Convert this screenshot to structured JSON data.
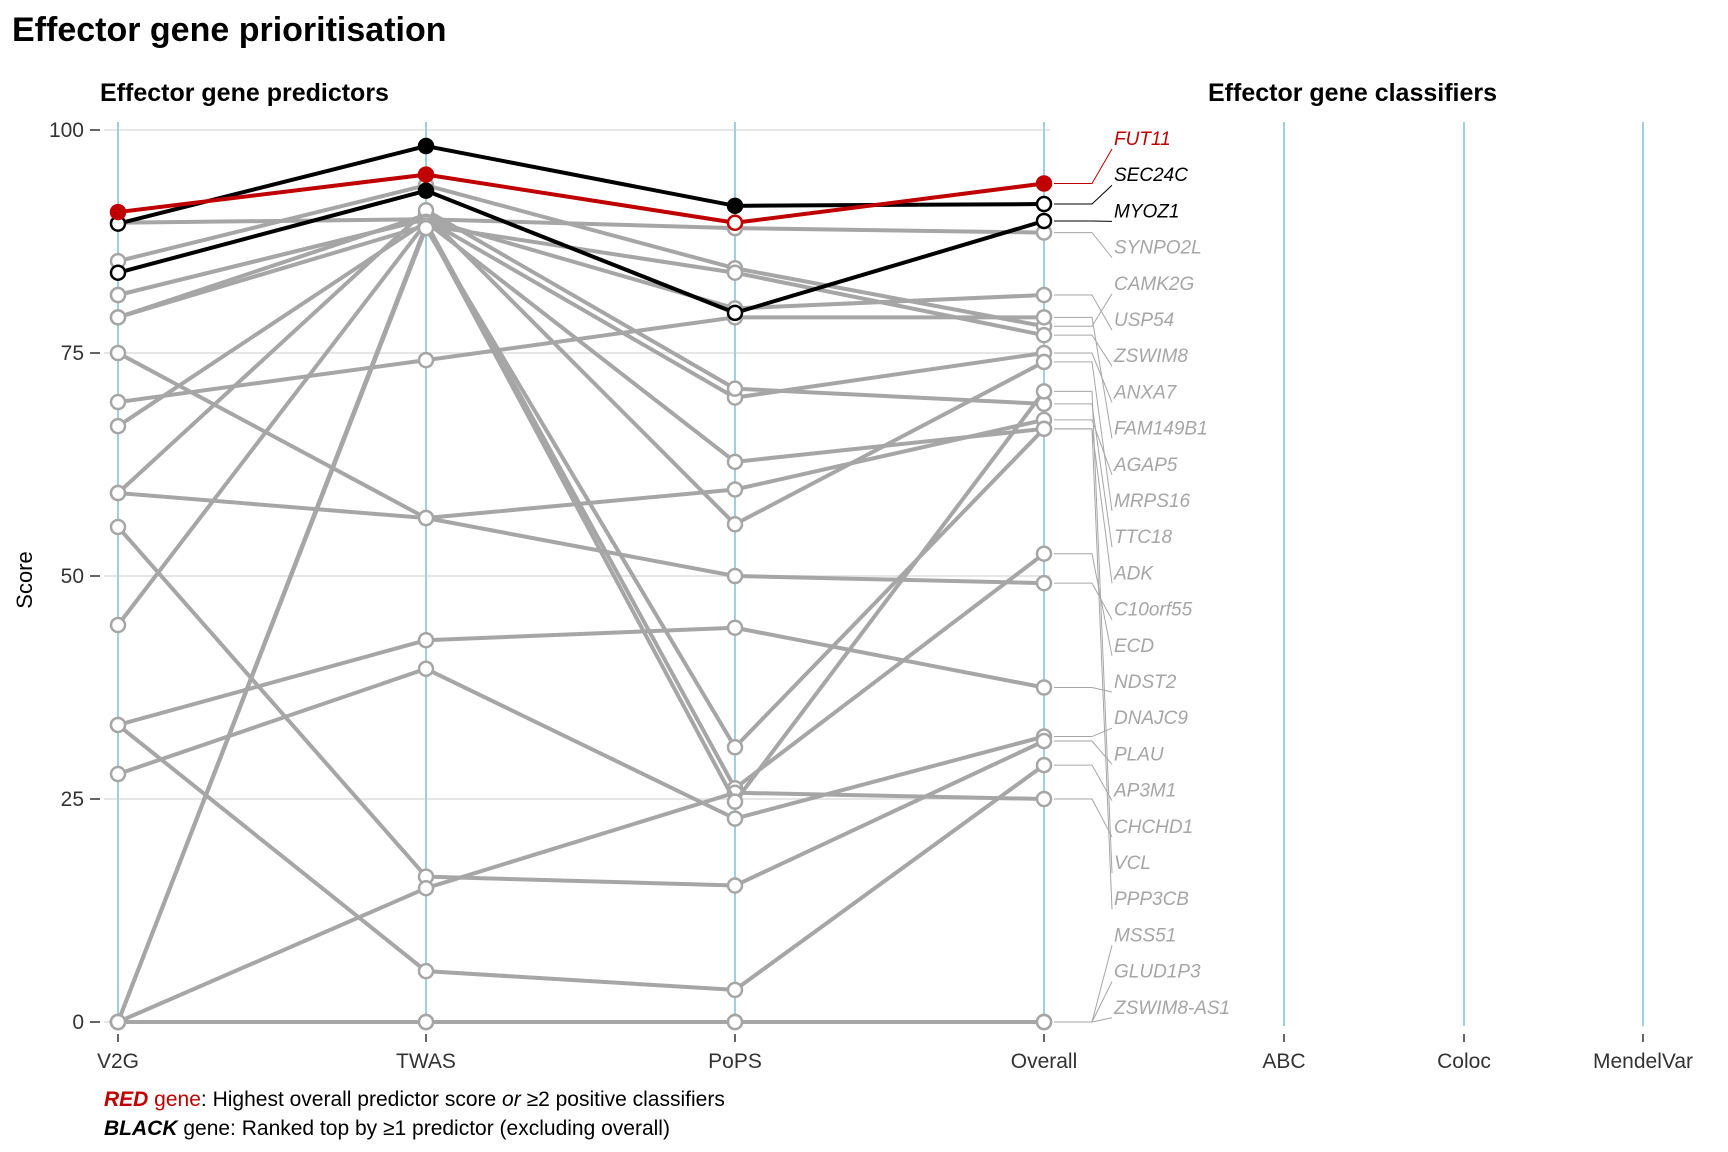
{
  "title": "Effector gene prioritisation",
  "panel_left_title": "Effector gene predictors",
  "panel_right_title": "Effector gene classifiers",
  "footnote": {
    "line1": {
      "bold": "RED",
      "colored": " gene",
      "rest1": ": Highest overall predictor score ",
      "italic": "or",
      "rest2": " ≥2 positive classifiers"
    },
    "line2": {
      "bold": "BLACK",
      "rest": " gene: Ranked top by ≥1 predictor (excluding overall)"
    }
  },
  "colors": {
    "red": "#c00000",
    "black": "#000000",
    "grey": "#a6a6a6",
    "axis_line": "#9fd0de",
    "grid": "#e6e6e6"
  },
  "chart_data": {
    "type": "line",
    "title": "Effector gene prioritisation",
    "ylabel": "Score",
    "ylim": [
      0,
      100
    ],
    "yticks": [
      0,
      25,
      50,
      75,
      100
    ],
    "grid": true,
    "categories": [
      "V2G",
      "TWAS",
      "PoPS",
      "Overall"
    ],
    "classifier_categories": [
      "ABC",
      "Coloc",
      "MendelVar"
    ],
    "series": [
      {
        "name": "FUT11",
        "group": "red",
        "values": [
          90.8,
          95.0,
          89.6,
          94.0
        ]
      },
      {
        "name": "SEC24C",
        "group": "black",
        "values": [
          89.5,
          98.2,
          91.5,
          91.7
        ]
      },
      {
        "name": "MYOZ1",
        "group": "black",
        "values": [
          84.0,
          93.2,
          79.5,
          89.8
        ]
      },
      {
        "name": "SYNPO2L",
        "group": "grey",
        "values": [
          89.6,
          90.0,
          89.0,
          88.5
        ]
      },
      {
        "name": "CAMK2G",
        "group": "grey",
        "values": [
          85.3,
          93.8,
          84.5,
          78.0
        ]
      },
      {
        "name": "USP54",
        "group": "grey",
        "values": [
          81.5,
          90.0,
          80.0,
          81.5
        ]
      },
      {
        "name": "ZSWIM8",
        "group": "grey",
        "values": [
          79.0,
          89.3,
          84.0,
          77.0
        ]
      },
      {
        "name": "ANXA7",
        "group": "grey",
        "values": [
          81.5,
          90.0,
          70.0,
          75.0
        ]
      },
      {
        "name": "FAM149B1",
        "group": "grey",
        "values": [
          69.5,
          74.2,
          79.0,
          79.0
        ]
      },
      {
        "name": "AGAP5",
        "group": "grey",
        "values": [
          75.0,
          56.5,
          59.7,
          67.5
        ]
      },
      {
        "name": "MRPS16",
        "group": "grey",
        "values": [
          79.0,
          90.5,
          55.8,
          74.0
        ]
      },
      {
        "name": "TTC18",
        "group": "grey",
        "values": [
          59.3,
          91.0,
          71.0,
          69.3
        ]
      },
      {
        "name": "ADK",
        "group": "grey",
        "values": [
          66.8,
          89.7,
          62.8,
          66.5
        ]
      },
      {
        "name": "C10orf55",
        "group": "grey",
        "values": [
          59.3,
          56.5,
          50.0,
          49.2
        ]
      },
      {
        "name": "ECD",
        "group": "grey",
        "values": [
          44.5,
          89.6,
          26.2,
          52.5
        ]
      },
      {
        "name": "NDST2",
        "group": "grey",
        "values": [
          33.3,
          42.8,
          44.2,
          37.5
        ]
      },
      {
        "name": "DNAJC9",
        "group": "grey",
        "values": [
          27.8,
          39.6,
          22.8,
          32.0
        ]
      },
      {
        "name": "PLAU",
        "group": "grey",
        "values": [
          55.5,
          16.3,
          15.3,
          31.5
        ]
      },
      {
        "name": "AP3M1",
        "group": "grey",
        "values": [
          33.3,
          5.7,
          3.6,
          28.8
        ]
      },
      {
        "name": "CHCHD1",
        "group": "grey",
        "values": [
          0.0,
          15.0,
          25.7,
          25.0
        ]
      },
      {
        "name": "VCL",
        "group": "grey",
        "values": [
          0.0,
          89.3,
          24.7,
          70.7
        ]
      },
      {
        "name": "PPP3CB",
        "group": "grey",
        "values": [
          0.0,
          89.0,
          30.8,
          66.5
        ]
      },
      {
        "name": "MSS51",
        "group": "grey",
        "values": [
          0.0,
          0.0,
          0.0,
          0.0
        ]
      },
      {
        "name": "GLUD1P3",
        "group": "grey",
        "values": [
          0.0,
          0.0,
          0.0,
          0.0
        ]
      },
      {
        "name": "ZSWIM8-AS1",
        "group": "grey",
        "values": [
          0.0,
          0.0,
          0.0,
          0.0
        ]
      }
    ]
  }
}
